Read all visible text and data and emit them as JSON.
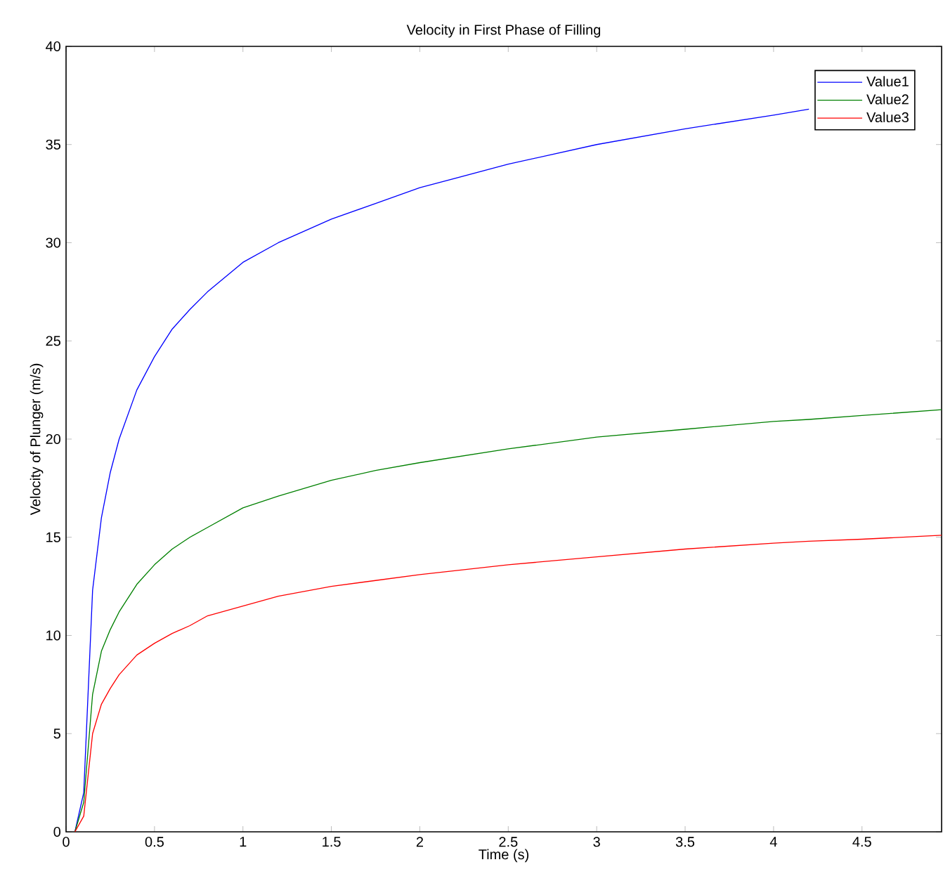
{
  "chart_data": {
    "type": "line",
    "title": "Velocity in First Phase of Filling",
    "xlabel": "Time (s)",
    "ylabel": "Velocity of Plunger (m/s)",
    "x": [
      0.05,
      0.1,
      0.15,
      0.2,
      0.25,
      0.3,
      0.4,
      0.5,
      0.6,
      0.7,
      0.8,
      1.0,
      1.2,
      1.5,
      1.75,
      2.0,
      2.5,
      3.0,
      3.5,
      4.0,
      4.2,
      4.5,
      4.95
    ],
    "series": [
      {
        "name": "Value1",
        "color": "#0000ff",
        "values": [
          0,
          2,
          12.3,
          16,
          18.3,
          20,
          22.5,
          24.2,
          25.6,
          26.6,
          27.5,
          29,
          30,
          31.2,
          32,
          32.8,
          34,
          35,
          35.8,
          36.5,
          36.8,
          null,
          null
        ]
      },
      {
        "name": "Value2",
        "color": "#008000",
        "values": [
          0,
          1.5,
          7,
          9.2,
          10.3,
          11.2,
          12.6,
          13.6,
          14.4,
          15,
          15.5,
          16.5,
          17.1,
          17.9,
          18.4,
          18.8,
          19.5,
          20.1,
          20.5,
          20.9,
          21.0,
          21.2,
          21.5
        ]
      },
      {
        "name": "Value3",
        "color": "#ff0000",
        "values": [
          0,
          0.8,
          5,
          6.5,
          7.3,
          8,
          9,
          9.6,
          10.1,
          10.5,
          11,
          11.5,
          12,
          12.5,
          12.8,
          13.1,
          13.6,
          14,
          14.4,
          14.7,
          14.8,
          14.9,
          15.1
        ]
      }
    ],
    "xlim": [
      0,
      4.95
    ],
    "ylim": [
      0,
      40
    ],
    "xticks": [
      0,
      0.5,
      1,
      1.5,
      2,
      2.5,
      3,
      3.5,
      4,
      4.5
    ],
    "yticks": [
      0,
      5,
      10,
      15,
      20,
      25,
      30,
      35,
      40
    ],
    "grid": false,
    "legend": "top right"
  }
}
